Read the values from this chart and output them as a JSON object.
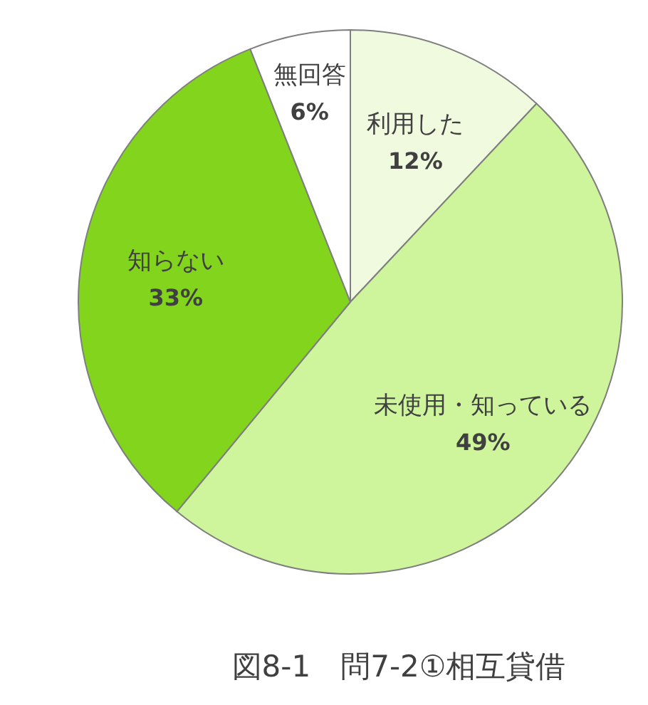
{
  "chart_data": {
    "type": "pie",
    "title": "図8-1　問7-2①相互貸借",
    "categories": [
      "利用した",
      "未使用・知っている",
      "知らない",
      "無回答"
    ],
    "values": [
      12,
      49,
      33,
      6
    ],
    "value_labels": [
      "12%",
      "49%",
      "33%",
      "6%"
    ],
    "colors": [
      "#effadf",
      "#cef59c",
      "#82d41c",
      "#ffffff"
    ]
  }
}
